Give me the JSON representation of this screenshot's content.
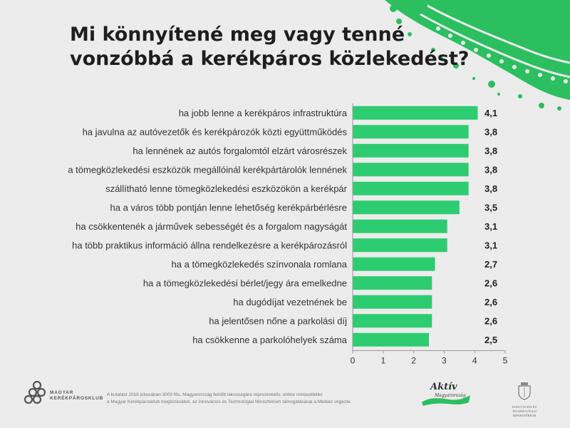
{
  "title_line1": "Mi könnyítené meg vagy tenné",
  "title_line2": "vonzóbbá a kerékpáros közlekedést?",
  "colors": {
    "bar": "#2ecc71",
    "accent": "#2bbf60",
    "background": "#ececec"
  },
  "chart_data": {
    "type": "bar",
    "orientation": "horizontal",
    "categories": [
      "ha jobb lenne a kerékpáros infrastruktúra",
      "ha javulna az autóvezetők és kerékpározók közti együttműködés",
      "ha lennének az autós forgalomtól elzárt városrészek",
      "a tömegközlekedési eszközök megállóinál kerékpártárolók lennének",
      "szállítható lenne tömegközlekedési eszközökön a kerékpár",
      "ha a város több pontján lenne lehetőség kerékpárbérlésre",
      "ha csökkentenék a járművek sebességét és a forgalom nagyságát",
      "ha több praktikus információ állna rendelkezésre a kerékpározásról",
      "ha a tömegközlekedés színvonala romlana",
      "ha a tömegközlekedési bérlet/jegy ára emelkedne",
      "ha dugódíjat vezetnének be",
      "ha jelentősen nőne a parkolási díj",
      "ha csökkenne a parkolóhelyek száma"
    ],
    "values": [
      4.1,
      3.8,
      3.8,
      3.8,
      3.8,
      3.5,
      3.1,
      3.1,
      2.7,
      2.6,
      2.6,
      2.6,
      2.5
    ],
    "value_labels": [
      "4,1",
      "3,8",
      "3,8",
      "3,8",
      "3,8",
      "3,5",
      "3,1",
      "3,1",
      "2,7",
      "2,6",
      "2,6",
      "2,6",
      "2,5"
    ],
    "xlim": [
      0,
      5
    ],
    "xticks": [
      "0",
      "1",
      "2",
      "3",
      "4",
      "5"
    ],
    "grid": false
  },
  "footer": {
    "logo_line1": "MAGYAR",
    "logo_line2": "KERÉKPÁROSKLUB",
    "note_line1": "A kutatást 2018 júliusában 3000 fős, Magyarország felnőtt lakosságára reprezentatív, online mintavétellel",
    "note_line2": "a Magyar Kerékpárosklub megbízásából, az Innovációs és Technológiai Minisztérium támogatásával a Medián végezte.",
    "aktiv_title": "Aktív",
    "aktiv_sub": "Magyarország",
    "ministry_line1": "INNOVÁCIÓS ÉS TECHNOLÓGIAI",
    "ministry_line2": "MINISZTÉRIUM"
  }
}
